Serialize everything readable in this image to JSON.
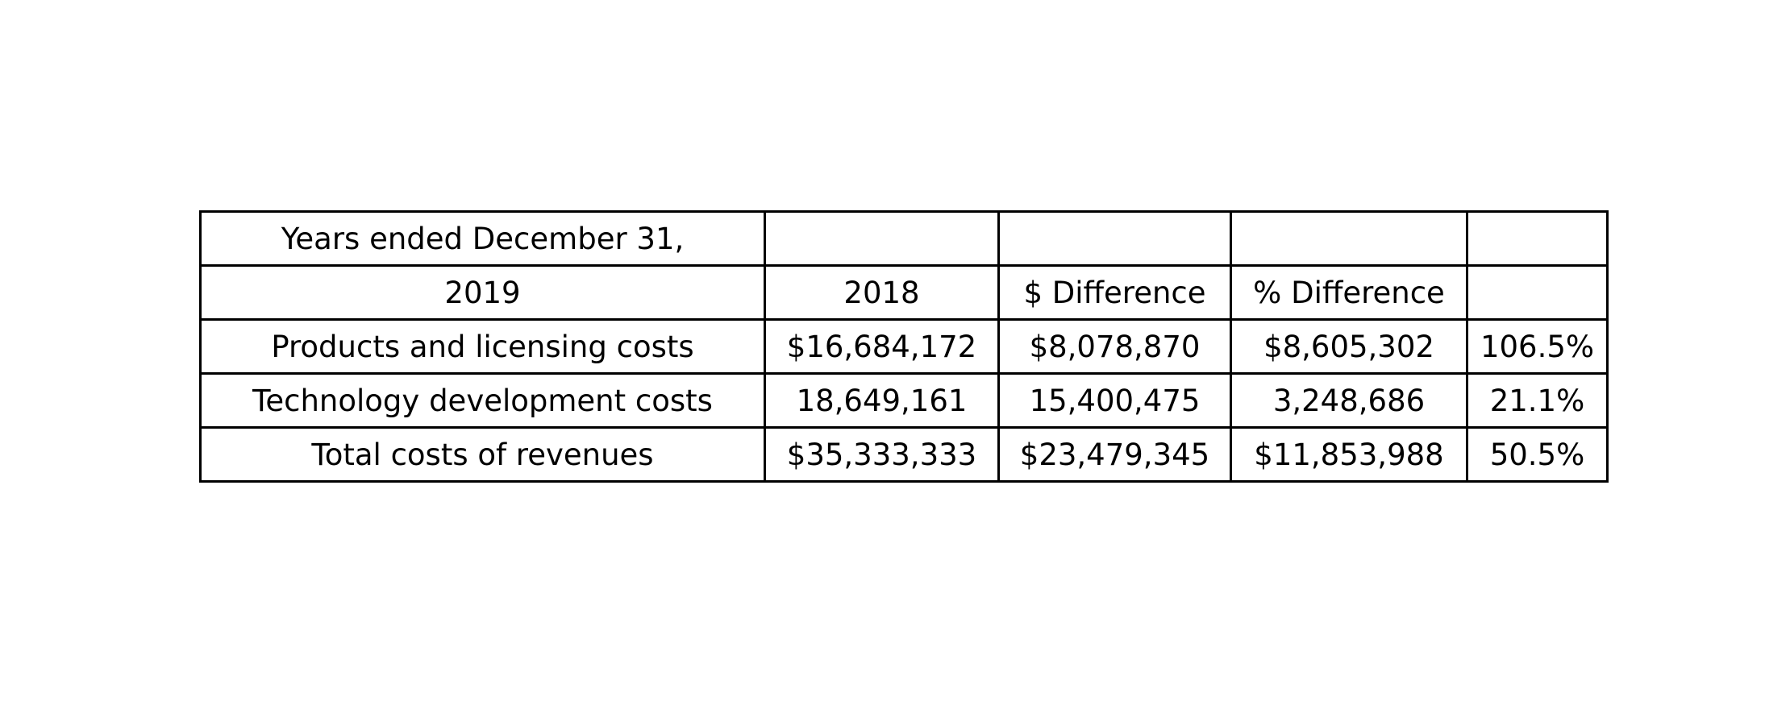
{
  "chart_data": {
    "type": "table",
    "rows": [
      [
        "Years ended December 31,",
        "",
        "",
        "",
        ""
      ],
      [
        "2019",
        "2018",
        "$ Difference",
        "% Difference",
        ""
      ],
      [
        "Products and licensing costs",
        "$16,684,172",
        "$8,078,870",
        "$8,605,302",
        "106.5%"
      ],
      [
        "Technology development costs",
        "18,649,161",
        "15,400,475",
        "3,248,686",
        "21.1%"
      ],
      [
        "Total costs of revenues",
        "$35,333,333",
        "$23,479,345",
        "$11,853,988",
        "50.5%"
      ]
    ]
  }
}
